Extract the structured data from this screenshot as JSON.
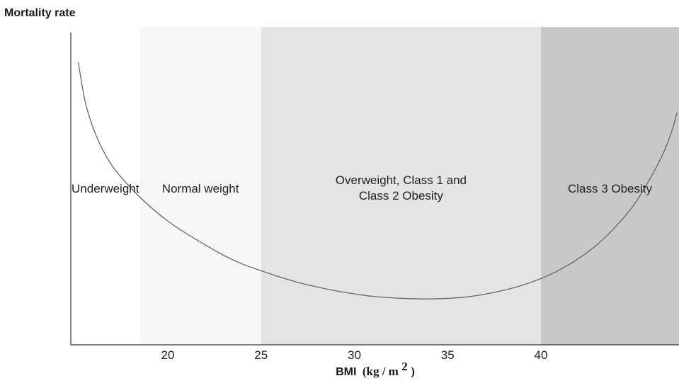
{
  "chart_data": {
    "type": "line",
    "title": "",
    "ylabel": "Mortality rate",
    "xlabel": {
      "prefix": "BMI",
      "unit_open": "(kg / m",
      "unit_sup": "2",
      "unit_close": ")"
    },
    "xlim": [
      14.8,
      47.4
    ],
    "ylim": [
      0,
      100
    ],
    "x_ticks": [
      20,
      25,
      30,
      35,
      40
    ],
    "x_tick_labels": [
      "20",
      "25",
      "30",
      "35",
      "40"
    ],
    "y_ticks_shown": false,
    "zones": [
      {
        "name": "underweight",
        "label_lines": [
          "Underweight"
        ],
        "from": 14.8,
        "to": 18.5,
        "color": "#ffffff"
      },
      {
        "name": "normal-weight",
        "label_lines": [
          "Normal weight"
        ],
        "from": 18.5,
        "to": 25,
        "color": "#f7f7f7"
      },
      {
        "name": "overweight-class1-class2",
        "label_lines": [
          "Overweight, Class 1 and",
          "Class 2 Obesity"
        ],
        "from": 25,
        "to": 40,
        "color": "#e4e4e4"
      },
      {
        "name": "class3-obesity",
        "label_lines": [
          "Class 3 Obesity"
        ],
        "from": 40,
        "to": 47.4,
        "color": "#c8c8c8"
      }
    ],
    "series": [
      {
        "color": "#666666",
        "x": [
          15.2,
          15.6,
          16.2,
          17.0,
          18.0,
          19.0,
          20.0,
          21.0,
          22.0,
          23.0,
          24.0,
          25.0,
          26.0,
          27.0,
          28.0,
          29.0,
          30.0,
          31.0,
          32.0,
          33.0,
          34.0,
          35.0,
          36.0,
          37.0,
          38.0,
          39.0,
          40.0,
          41.0,
          42.0,
          43.0,
          44.0,
          45.0,
          46.0,
          46.6,
          47.0,
          47.3
        ],
        "values": [
          95,
          80,
          68,
          58,
          50,
          43.5,
          38,
          33.5,
          29.5,
          25.7,
          22.6,
          20.2,
          18.0,
          16.0,
          14.4,
          13.0,
          11.9,
          11.0,
          10.5,
          10.2,
          10.1,
          10.3,
          10.8,
          11.8,
          13.2,
          15.0,
          17.4,
          20.5,
          24.5,
          29.5,
          36,
          44,
          55,
          63,
          70,
          77
        ]
      }
    ]
  }
}
